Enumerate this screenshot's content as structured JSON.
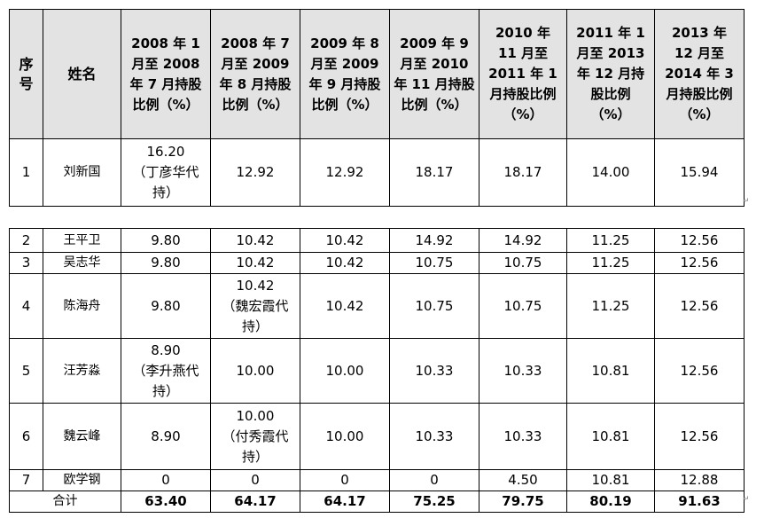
{
  "table": {
    "headers": [
      "序号",
      "姓名",
      "2008 年 1 月至 2008 年 7 月持股比例（%）",
      "2008 年 7 月至 2009 年 8 月持股比例（%）",
      "2009 年 8 月至 2009 年 9 月持股比例（%）",
      "2009 年 9 月至 2010 年 11 月持股比例（%）",
      "2010 年 11 月至 2011 年 1 月持股比例（%）",
      "2011 年 1 月至 2013 年 12 月持股比例（%）",
      "2013 年 12 月至 2014 年 3 月持股比例（%）"
    ],
    "rows": [
      {
        "no": "1",
        "name": "刘新国",
        "v": [
          "16.20\n（丁彦华代持）",
          "12.92",
          "12.92",
          "18.17",
          "18.17",
          "14.00",
          "15.94"
        ]
      },
      {
        "no": "2",
        "name": "王平卫",
        "v": [
          "9.80",
          "10.42",
          "10.42",
          "14.92",
          "14.92",
          "11.25",
          "12.56"
        ]
      },
      {
        "no": "3",
        "name": "吴志华",
        "v": [
          "9.80",
          "10.42",
          "10.42",
          "10.75",
          "10.75",
          "11.25",
          "12.56"
        ]
      },
      {
        "no": "4",
        "name": "陈海舟",
        "v": [
          "9.80",
          "10.42\n（魏宏霞代持）",
          "10.42",
          "10.75",
          "10.75",
          "11.25",
          "12.56"
        ]
      },
      {
        "no": "5",
        "name": "汪芳淼",
        "v": [
          "8.90\n（李升燕代持）",
          "10.00",
          "10.00",
          "10.33",
          "10.33",
          "10.81",
          "12.56"
        ]
      },
      {
        "no": "6",
        "name": "魏云峰",
        "v": [
          "8.90",
          "10.00\n（付秀霞代持）",
          "10.00",
          "10.33",
          "10.33",
          "10.81",
          "12.56"
        ]
      },
      {
        "no": "7",
        "name": "欧学钢",
        "v": [
          "0",
          "0",
          "0",
          "0",
          "4.50",
          "10.81",
          "12.88"
        ]
      }
    ],
    "total": {
      "label": "合计",
      "v": [
        "63.40",
        "64.17",
        "64.17",
        "75.25",
        "79.75",
        "80.19",
        "91.63"
      ]
    }
  }
}
